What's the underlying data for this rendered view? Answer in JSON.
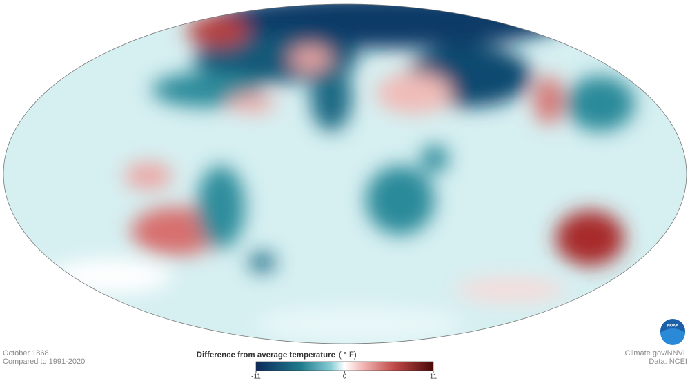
{
  "header": {
    "date": "October 1868",
    "baseline": "Compared to 1991-2020"
  },
  "legend": {
    "title": "Difference from average temperature",
    "unit": "( ° F)",
    "min": -11,
    "max": 11,
    "ticks": [
      -11,
      0,
      11
    ]
  },
  "credits": {
    "source": "Climate.gov/NNVL",
    "data": "Data: NCEI",
    "logo": "NOAA"
  }
}
